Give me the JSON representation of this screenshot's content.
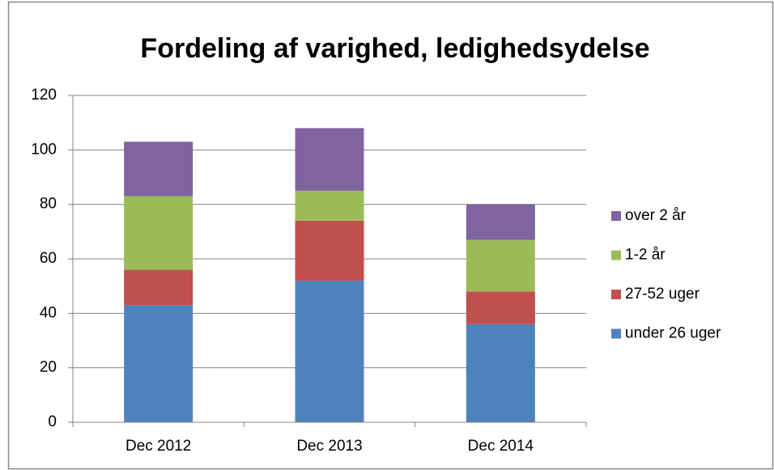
{
  "chart_data": {
    "type": "stacked_bar",
    "title": "Fordeling af varighed, ledighedsydelse",
    "categories": [
      "Dec 2012",
      "Dec 2013",
      "Dec 2014"
    ],
    "series": [
      {
        "name": "under 26 uger",
        "color": "#4f81bd",
        "values": [
          43,
          52,
          36
        ]
      },
      {
        "name": "27-52 uger",
        "color": "#c0504d",
        "values": [
          13,
          22,
          12
        ]
      },
      {
        "name": "1-2 år",
        "color": "#9bbb59",
        "values": [
          27,
          11,
          19
        ]
      },
      {
        "name": "over 2 år",
        "color": "#8064a2",
        "values": [
          20,
          23,
          13
        ]
      }
    ],
    "ylim": [
      0,
      120
    ],
    "yticks": [
      0,
      20,
      40,
      60,
      80,
      100,
      120
    ],
    "grid": true,
    "legend": "right"
  }
}
